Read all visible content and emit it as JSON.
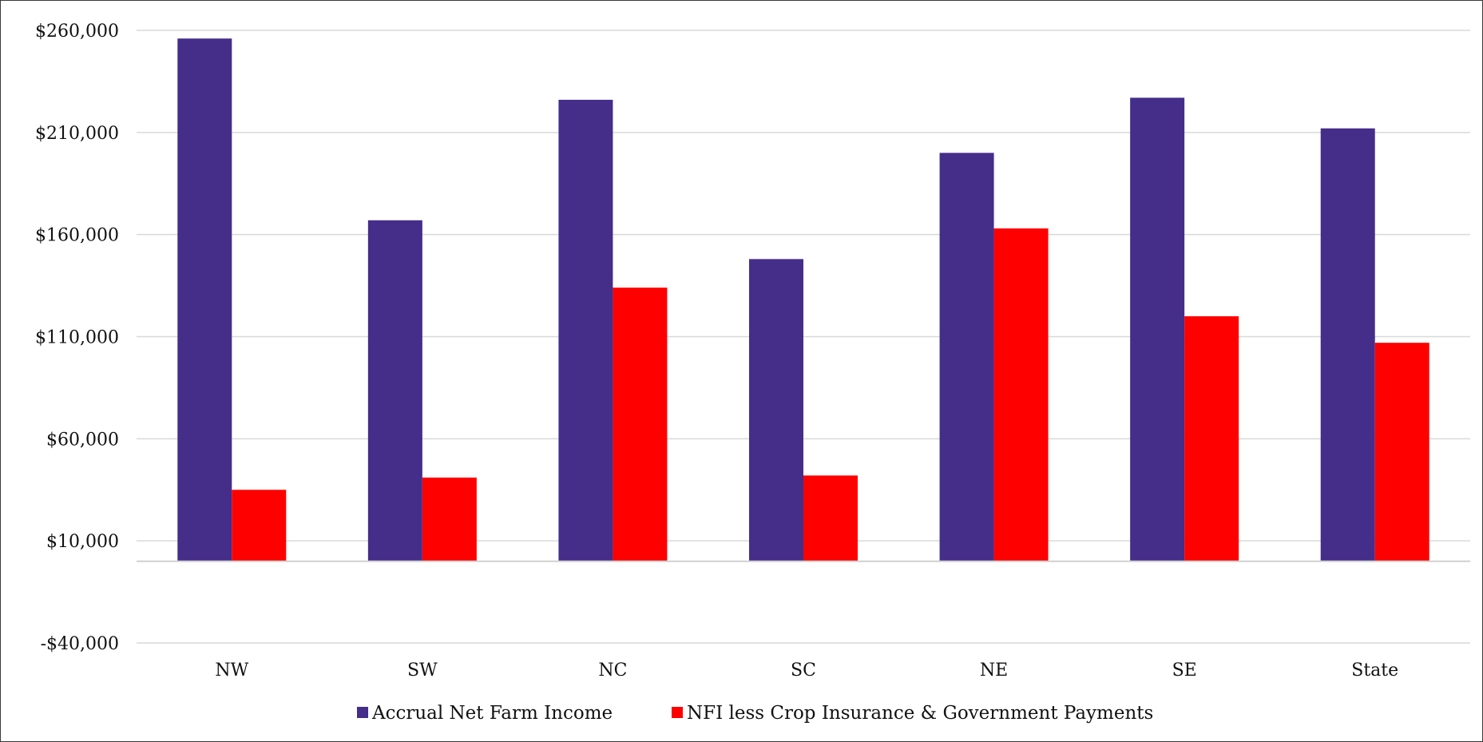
{
  "chart_data": {
    "type": "bar",
    "title": "",
    "xlabel": "",
    "ylabel": "",
    "categories": [
      "NW",
      "SW",
      "NC",
      "SC",
      "NE",
      "SE",
      "State"
    ],
    "series": [
      {
        "name": "Accrual Net Farm Income",
        "color": "#452d8a",
        "values": [
          256000,
          167000,
          226000,
          148000,
          200000,
          227000,
          212000
        ]
      },
      {
        "name": "NFI less Crop Insurance & Government Payments",
        "color": "#ff0000",
        "values": [
          35000,
          41000,
          134000,
          42000,
          163000,
          120000,
          107000
        ]
      }
    ],
    "ylim": [
      -40000,
      260000
    ],
    "yticks": [
      -40000,
      10000,
      60000,
      110000,
      160000,
      210000,
      260000
    ],
    "ytick_labels": [
      "-$40,000",
      "$10,000",
      "$60,000",
      "$110,000",
      "$160,000",
      "$210,000",
      "$260,000"
    ],
    "baseline": 0,
    "grid": true,
    "legend_position": "bottom"
  }
}
